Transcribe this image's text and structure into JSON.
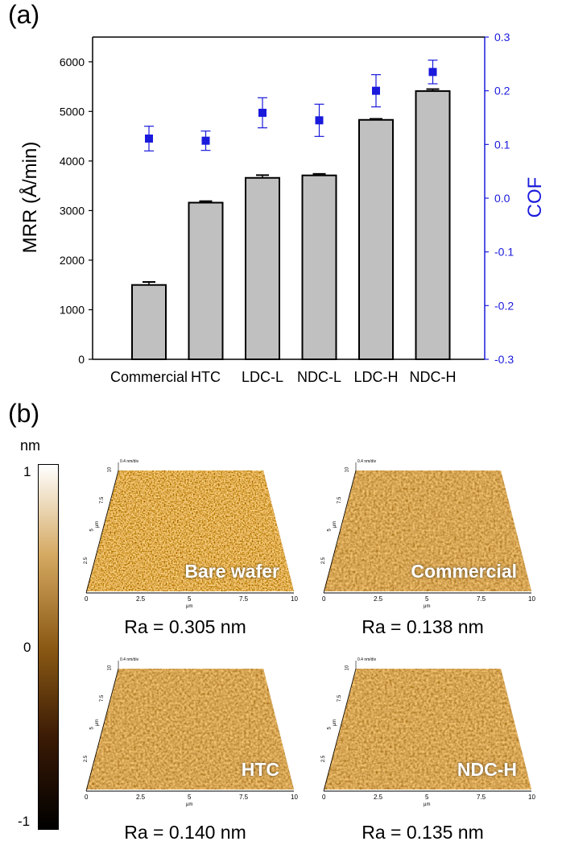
{
  "panel_a_label": "(a)",
  "panel_b_label": "(b)",
  "chart_data": {
    "type": "bar",
    "categories": [
      "Commercial",
      "HTC",
      "LDC-L",
      "NDC-L",
      "LDC-H",
      "NDC-H"
    ],
    "series": [
      {
        "name": "MRR",
        "axis": "left",
        "type": "bar",
        "values": [
          1500,
          3160,
          3660,
          3710,
          4830,
          5410
        ],
        "errors": [
          60,
          30,
          55,
          30,
          20,
          40
        ],
        "color": "#c0c0c0"
      },
      {
        "name": "COF",
        "axis": "right",
        "type": "scatter",
        "values": [
          0.111,
          0.107,
          0.159,
          0.145,
          0.2,
          0.235
        ],
        "errors": [
          0.023,
          0.018,
          0.028,
          0.03,
          0.03,
          0.022
        ],
        "color": "#1a1adc"
      }
    ],
    "ylabel": "MRR (Å/min)",
    "y2label": "COF",
    "ylim": [
      0,
      6500
    ],
    "y2lim": [
      -0.3,
      0.3
    ],
    "yticks": [
      "0",
      "1000",
      "2000",
      "3000",
      "4000",
      "5000",
      "6000"
    ],
    "y2ticks": [
      "-0.3",
      "-0.2",
      "-0.1",
      "0.0",
      "0.1",
      "0.2",
      "0.3"
    ],
    "grid": false,
    "accent_color": "#1a1adc"
  },
  "afm": {
    "colorbar_unit": "nm",
    "colorbar_ticks": [
      "1",
      "0",
      "-1"
    ],
    "colorbar_colors": [
      "#ffffff",
      "#d4a860",
      "#8b5a14",
      "#3a1a05",
      "#000000"
    ],
    "scale_label": "0.4 nm/div",
    "x_ticks": [
      "0",
      "2.5",
      "5",
      "7.5",
      "10"
    ],
    "y_ticks": [
      "2.5",
      "5",
      "7.5",
      "10"
    ],
    "unit": "μm",
    "images": [
      {
        "name": "Bare wafer",
        "ra": "Ra = 0.305 nm"
      },
      {
        "name": "Commercial",
        "ra": "Ra = 0.138 nm"
      },
      {
        "name": "HTC",
        "ra": "Ra = 0.140 nm"
      },
      {
        "name": "NDC-H",
        "ra": "Ra = 0.135 nm"
      }
    ]
  }
}
